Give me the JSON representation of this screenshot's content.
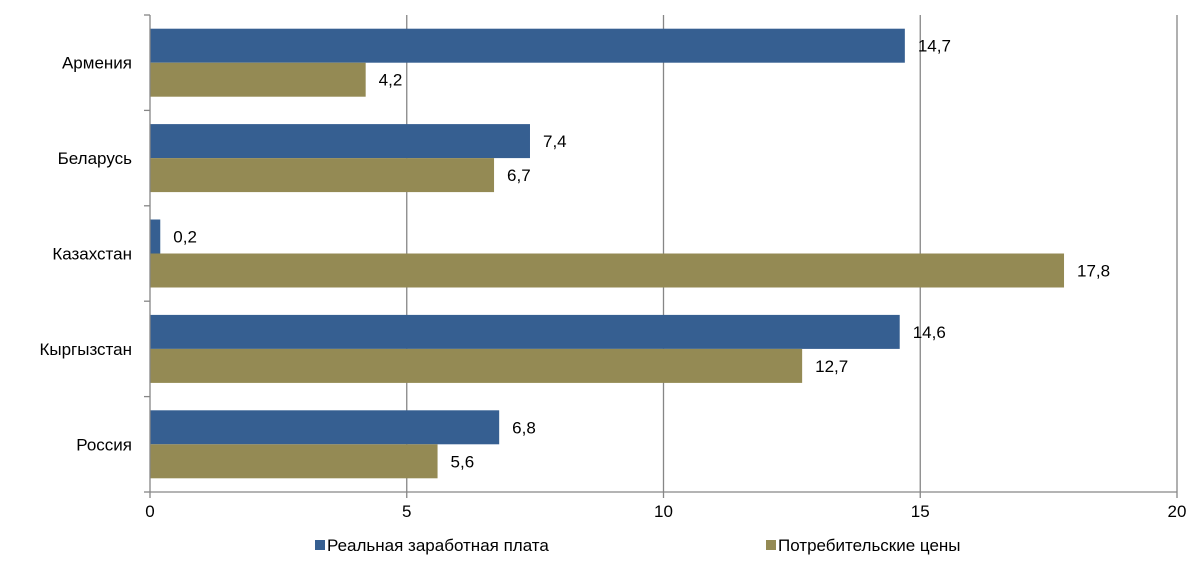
{
  "chart_data": {
    "type": "bar",
    "orientation": "horizontal",
    "categories": [
      "Армения",
      "Беларусь",
      "Казахстан",
      "Кыргызстан",
      "Россия"
    ],
    "series": [
      {
        "name": "Реальная заработная плата",
        "values": [
          14.7,
          7.4,
          0.2,
          14.6,
          6.8
        ],
        "labels": [
          "14,7",
          "7,4",
          "0,2",
          "14,6",
          "6,8"
        ],
        "color": "#365f91"
      },
      {
        "name": "Потребительские цены",
        "values": [
          4.2,
          6.7,
          17.8,
          12.7,
          5.6
        ],
        "labels": [
          "4,2",
          "6,7",
          "17,8",
          "12,7",
          "5,6"
        ],
        "color": "#948a54"
      }
    ],
    "xlim": [
      0,
      20
    ],
    "xticks": [
      0,
      5,
      10,
      15,
      20
    ],
    "xtick_labels": [
      "0",
      "5",
      "10",
      "15",
      "20"
    ],
    "grid": "vertical",
    "legend": "bottom"
  }
}
